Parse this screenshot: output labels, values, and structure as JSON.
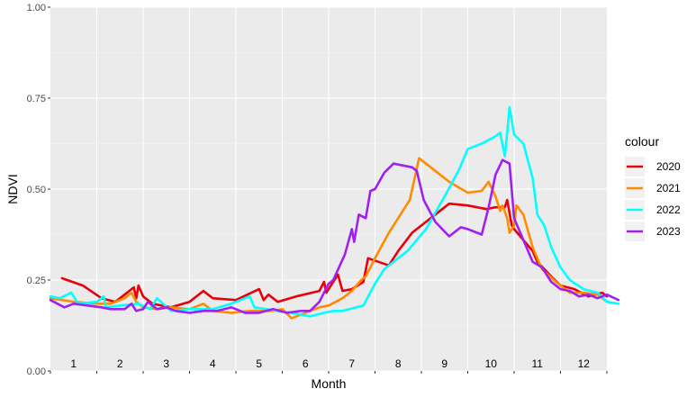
{
  "chart_data": {
    "type": "line",
    "xlabel": "Month",
    "ylabel": "NDVI",
    "ylim": [
      0,
      1
    ],
    "xlim": [
      0,
      12
    ],
    "y_ticks": [
      "0.00",
      "0.25",
      "0.50",
      "0.75",
      "1.00"
    ],
    "y_tick_values": [
      0,
      0.25,
      0.5,
      0.75,
      1
    ],
    "month_labels": [
      "1",
      "2",
      "3",
      "4",
      "5",
      "6",
      "7",
      "8",
      "9",
      "10",
      "11",
      "12"
    ],
    "grid": true,
    "legend": {
      "title": "colour",
      "position": "right"
    },
    "series": [
      {
        "name": "2020",
        "color": "#e8000b",
        "points": [
          [
            0.25,
            0.255
          ],
          [
            0.7,
            0.235
          ],
          [
            1.1,
            0.2
          ],
          [
            1.4,
            0.19
          ],
          [
            1.6,
            0.21
          ],
          [
            1.8,
            0.23
          ],
          [
            1.85,
            0.2
          ],
          [
            1.9,
            0.235
          ],
          [
            2.0,
            0.205
          ],
          [
            2.2,
            0.185
          ],
          [
            2.6,
            0.175
          ],
          [
            3.0,
            0.19
          ],
          [
            3.3,
            0.22
          ],
          [
            3.5,
            0.2
          ],
          [
            4.0,
            0.195
          ],
          [
            4.5,
            0.225
          ],
          [
            4.6,
            0.195
          ],
          [
            4.7,
            0.21
          ],
          [
            4.9,
            0.19
          ],
          [
            5.3,
            0.205
          ],
          [
            5.8,
            0.22
          ],
          [
            5.9,
            0.245
          ],
          [
            5.95,
            0.215
          ],
          [
            6.1,
            0.245
          ],
          [
            6.2,
            0.265
          ],
          [
            6.3,
            0.22
          ],
          [
            6.5,
            0.225
          ],
          [
            6.75,
            0.245
          ],
          [
            6.85,
            0.31
          ],
          [
            7.3,
            0.29
          ],
          [
            7.5,
            0.33
          ],
          [
            7.8,
            0.38
          ],
          [
            8.2,
            0.42
          ],
          [
            8.6,
            0.46
          ],
          [
            9.0,
            0.455
          ],
          [
            9.4,
            0.445
          ],
          [
            9.6,
            0.45
          ],
          [
            9.8,
            0.45
          ],
          [
            9.85,
            0.47
          ],
          [
            9.95,
            0.4
          ],
          [
            10.0,
            0.39
          ],
          [
            10.2,
            0.36
          ],
          [
            10.4,
            0.33
          ],
          [
            10.5,
            0.3
          ],
          [
            10.8,
            0.26
          ],
          [
            11.0,
            0.235
          ],
          [
            11.3,
            0.225
          ],
          [
            11.6,
            0.205
          ],
          [
            11.9,
            0.215
          ],
          [
            12.0,
            0.205
          ]
        ]
      },
      {
        "name": "2021",
        "color": "#ff8c00",
        "points": [
          [
            0.0,
            0.2
          ],
          [
            0.5,
            0.19
          ],
          [
            1.0,
            0.185
          ],
          [
            1.3,
            0.185
          ],
          [
            1.6,
            0.2
          ],
          [
            1.75,
            0.215
          ],
          [
            1.85,
            0.19
          ],
          [
            2.0,
            0.175
          ],
          [
            2.3,
            0.17
          ],
          [
            2.6,
            0.175
          ],
          [
            3.0,
            0.17
          ],
          [
            3.3,
            0.185
          ],
          [
            3.5,
            0.165
          ],
          [
            3.9,
            0.16
          ],
          [
            4.3,
            0.165
          ],
          [
            4.8,
            0.165
          ],
          [
            5.0,
            0.17
          ],
          [
            5.2,
            0.145
          ],
          [
            5.5,
            0.16
          ],
          [
            5.8,
            0.175
          ],
          [
            6.0,
            0.18
          ],
          [
            6.3,
            0.2
          ],
          [
            6.5,
            0.22
          ],
          [
            6.7,
            0.25
          ],
          [
            6.8,
            0.26
          ],
          [
            7.0,
            0.31
          ],
          [
            7.3,
            0.38
          ],
          [
            7.6,
            0.44
          ],
          [
            7.75,
            0.47
          ],
          [
            7.95,
            0.585
          ],
          [
            8.3,
            0.55
          ],
          [
            8.6,
            0.52
          ],
          [
            9.0,
            0.49
          ],
          [
            9.3,
            0.495
          ],
          [
            9.45,
            0.52
          ],
          [
            9.6,
            0.48
          ],
          [
            9.7,
            0.44
          ],
          [
            9.75,
            0.455
          ],
          [
            9.85,
            0.42
          ],
          [
            9.9,
            0.38
          ],
          [
            10.0,
            0.4
          ],
          [
            10.05,
            0.455
          ],
          [
            10.2,
            0.43
          ],
          [
            10.4,
            0.34
          ],
          [
            10.6,
            0.28
          ],
          [
            10.9,
            0.245
          ],
          [
            11.2,
            0.215
          ],
          [
            11.5,
            0.215
          ],
          [
            11.8,
            0.21
          ],
          [
            12.0,
            0.19
          ]
        ]
      },
      {
        "name": "2022",
        "color": "#00ffff",
        "points": [
          [
            0.0,
            0.205
          ],
          [
            0.2,
            0.2
          ],
          [
            0.45,
            0.215
          ],
          [
            0.6,
            0.185
          ],
          [
            1.0,
            0.19
          ],
          [
            1.15,
            0.205
          ],
          [
            1.2,
            0.175
          ],
          [
            1.5,
            0.18
          ],
          [
            1.9,
            0.185
          ],
          [
            2.15,
            0.17
          ],
          [
            2.3,
            0.2
          ],
          [
            2.6,
            0.165
          ],
          [
            3.0,
            0.17
          ],
          [
            3.5,
            0.17
          ],
          [
            3.9,
            0.185
          ],
          [
            4.3,
            0.205
          ],
          [
            4.4,
            0.175
          ],
          [
            4.9,
            0.165
          ],
          [
            5.2,
            0.16
          ],
          [
            5.6,
            0.15
          ],
          [
            5.9,
            0.16
          ],
          [
            6.1,
            0.165
          ],
          [
            6.3,
            0.165
          ],
          [
            6.6,
            0.175
          ],
          [
            6.75,
            0.18
          ],
          [
            7.0,
            0.24
          ],
          [
            7.2,
            0.28
          ],
          [
            7.7,
            0.33
          ],
          [
            8.1,
            0.39
          ],
          [
            8.5,
            0.48
          ],
          [
            8.8,
            0.55
          ],
          [
            9.0,
            0.61
          ],
          [
            9.3,
            0.625
          ],
          [
            9.6,
            0.645
          ],
          [
            9.7,
            0.655
          ],
          [
            9.8,
            0.59
          ],
          [
            9.85,
            0.655
          ],
          [
            9.9,
            0.725
          ],
          [
            10.0,
            0.65
          ],
          [
            10.2,
            0.625
          ],
          [
            10.4,
            0.53
          ],
          [
            10.5,
            0.43
          ],
          [
            10.65,
            0.4
          ],
          [
            10.8,
            0.34
          ],
          [
            11.0,
            0.285
          ],
          [
            11.2,
            0.25
          ],
          [
            11.5,
            0.225
          ],
          [
            11.8,
            0.215
          ],
          [
            12.0,
            0.19
          ],
          [
            12.25,
            0.185
          ]
        ]
      },
      {
        "name": "2023",
        "color": "#a020f0",
        "points": [
          [
            0.0,
            0.195
          ],
          [
            0.3,
            0.175
          ],
          [
            0.5,
            0.185
          ],
          [
            0.8,
            0.18
          ],
          [
            1.1,
            0.175
          ],
          [
            1.3,
            0.17
          ],
          [
            1.6,
            0.17
          ],
          [
            1.75,
            0.185
          ],
          [
            1.85,
            0.165
          ],
          [
            2.0,
            0.17
          ],
          [
            2.1,
            0.19
          ],
          [
            2.3,
            0.17
          ],
          [
            2.5,
            0.175
          ],
          [
            2.7,
            0.165
          ],
          [
            3.0,
            0.16
          ],
          [
            3.3,
            0.165
          ],
          [
            3.6,
            0.165
          ],
          [
            3.9,
            0.175
          ],
          [
            4.2,
            0.16
          ],
          [
            4.5,
            0.16
          ],
          [
            4.8,
            0.17
          ],
          [
            5.1,
            0.16
          ],
          [
            5.4,
            0.165
          ],
          [
            5.6,
            0.165
          ],
          [
            5.8,
            0.19
          ],
          [
            6.0,
            0.24
          ],
          [
            6.1,
            0.25
          ],
          [
            6.35,
            0.32
          ],
          [
            6.5,
            0.39
          ],
          [
            6.55,
            0.355
          ],
          [
            6.65,
            0.43
          ],
          [
            6.8,
            0.42
          ],
          [
            6.9,
            0.495
          ],
          [
            7.0,
            0.5
          ],
          [
            7.2,
            0.545
          ],
          [
            7.4,
            0.57
          ],
          [
            7.8,
            0.56
          ],
          [
            7.9,
            0.55
          ],
          [
            8.05,
            0.47
          ],
          [
            8.3,
            0.41
          ],
          [
            8.6,
            0.37
          ],
          [
            8.85,
            0.395
          ],
          [
            9.0,
            0.39
          ],
          [
            9.3,
            0.375
          ],
          [
            9.45,
            0.45
          ],
          [
            9.6,
            0.54
          ],
          [
            9.75,
            0.58
          ],
          [
            9.9,
            0.57
          ],
          [
            10.0,
            0.42
          ],
          [
            10.1,
            0.39
          ],
          [
            10.2,
            0.36
          ],
          [
            10.4,
            0.3
          ],
          [
            10.6,
            0.285
          ],
          [
            10.8,
            0.245
          ],
          [
            11.0,
            0.225
          ],
          [
            11.2,
            0.22
          ],
          [
            11.4,
            0.205
          ],
          [
            11.6,
            0.21
          ],
          [
            11.8,
            0.2
          ],
          [
            12.0,
            0.21
          ],
          [
            12.25,
            0.195
          ]
        ]
      }
    ]
  }
}
